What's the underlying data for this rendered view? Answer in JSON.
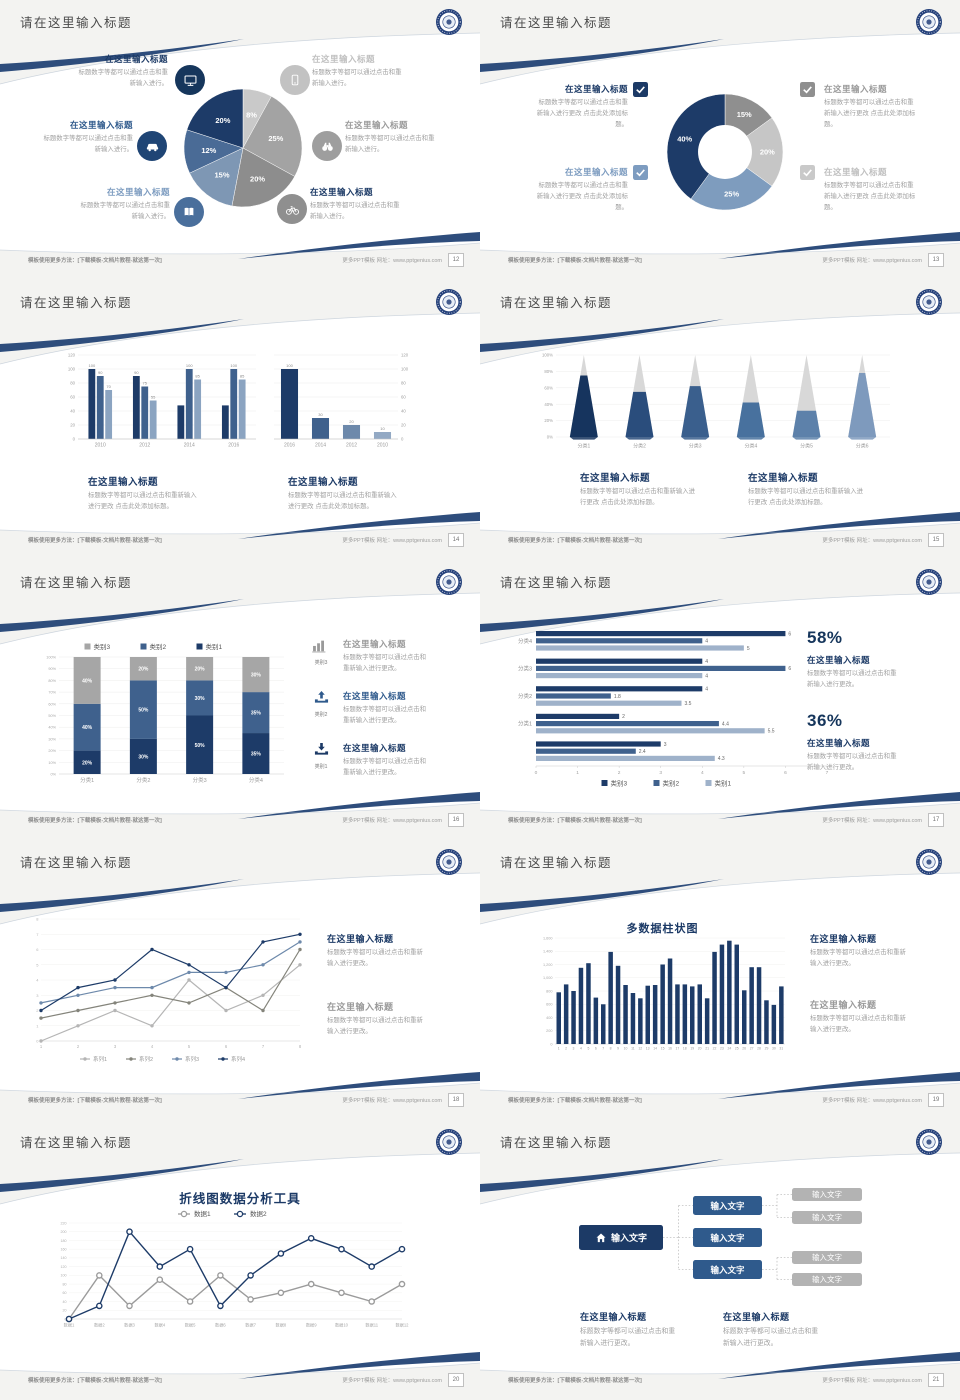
{
  "strings": {
    "slide_title": "请在这里输入标题",
    "item_title": "在这里输入标题",
    "body_short": "标题数字等都可以通过点击和重新输入进行。",
    "body_add": "标题数字等都可以通过点击和重新输入进行更改 点击此处添加标题。",
    "body_change": "标题数字等都可以通过点击和重新输入进行更改。",
    "input_text": "输入文字"
  },
  "footer": {
    "left_label": "模板使用更多方法：[下载模板-文档片教程-就这第一次]",
    "right_label": "更多PPT模板 网址：www.pptgenius.com",
    "pages": [
      "12",
      "13",
      "14",
      "15",
      "16",
      "17",
      "18",
      "19",
      "20",
      "21"
    ]
  },
  "stats": {
    "stat1": "58%",
    "stat2": "36%"
  },
  "colors": {
    "navy": "#1d3b68",
    "mid_blue": "#3f618d",
    "light_blue": "#8ba4c1",
    "steel": "#7e9cbe",
    "gray": "#9a9a9a"
  },
  "chart_data": [
    {
      "type": "pie",
      "values": [
        8,
        25,
        20,
        15,
        12,
        20
      ],
      "labels": [
        "8%",
        "25%",
        "20%",
        "15%",
        "12%",
        "20%"
      ],
      "colors": [
        "#c9c9c9",
        "#a3a3a3",
        "#8d8d8d",
        "#7e97b4",
        "#4a6b96",
        "#1d3b68"
      ]
    },
    {
      "type": "donut",
      "values": [
        15,
        20,
        25,
        40
      ],
      "labels": [
        "15%",
        "20%",
        "25%",
        "40%"
      ],
      "colors": [
        "#8f8f8f",
        "#c6c6c6",
        "#7e9cbe",
        "#1d3b68"
      ]
    },
    {
      "type": "gbar",
      "categories": [
        "2010",
        "2012",
        "2014",
        "2016"
      ],
      "series": [
        {
          "color": "#1d3b68",
          "values": [
            100,
            90,
            48,
            48
          ]
        },
        {
          "color": "#3f618d",
          "values": [
            90,
            75,
            100,
            100
          ]
        },
        {
          "color": "#8ba4c1",
          "values": [
            70,
            55,
            85,
            85
          ]
        }
      ],
      "bar_labels": [
        [
          "100",
          "90",
          "70"
        ],
        [
          "90",
          "75",
          "55"
        ],
        [
          "",
          "100",
          "85"
        ],
        [
          "",
          "100",
          "85"
        ]
      ],
      "ymax": 120,
      "ystep": 20
    },
    {
      "type": "sbar",
      "categories": [
        "2016",
        "2014",
        "2012",
        "2010"
      ],
      "values": [
        100,
        30,
        20,
        10
      ],
      "labels": [
        "100",
        "30",
        "20",
        "10"
      ],
      "colors": [
        "#1d3b68",
        "#3f618d",
        "#6d89ab",
        "#93a9c4"
      ],
      "ymax": 120,
      "ystep": 20
    },
    {
      "type": "pyramid",
      "categories": [
        "分类1",
        "分类2",
        "分类3",
        "分类4",
        "分类5",
        "分类6"
      ],
      "fill_pct": [
        75,
        55,
        62,
        42,
        32,
        78
      ],
      "cone_colors": [
        "#16345e",
        "#2a4d7c",
        "#3a5f8d",
        "#48719e",
        "#5d81aa",
        "#7e9abd"
      ],
      "top_color": "#d8d8d8",
      "yticks": [
        "0%",
        "20%",
        "40%",
        "60%",
        "80%",
        "100%"
      ]
    },
    {
      "type": "stack",
      "categories": [
        "分类1",
        "分类2",
        "分类3",
        "分类4"
      ],
      "series": [
        {
          "name": "类别1",
          "color": "#1d3b68",
          "values": [
            20,
            30,
            50,
            35
          ]
        },
        {
          "name": "类别2",
          "color": "#3f618d",
          "values": [
            40,
            50,
            30,
            35
          ]
        },
        {
          "name": "类别3",
          "color": "#a6a6a6",
          "values": [
            40,
            20,
            20,
            30
          ]
        }
      ],
      "legend_order": [
        "类别3",
        "类别2",
        "类别1"
      ],
      "legend_colors": [
        "#a6a6a6",
        "#3f618d",
        "#1d3b68"
      ]
    },
    {
      "type": "hbar",
      "groups": [
        {
          "label": "分类4",
          "values": [
            6,
            4,
            5
          ]
        },
        {
          "label": "分类3",
          "values": [
            4,
            6,
            4
          ]
        },
        {
          "label": "分类2",
          "values": [
            4,
            1.8,
            3.5
          ]
        },
        {
          "label": "分类1",
          "values": [
            2,
            4.4,
            5.5
          ]
        },
        {
          "label": "",
          "values": [
            3,
            2.4,
            4.3
          ]
        }
      ],
      "series_colors": [
        "#1d3b68",
        "#3f618d",
        "#9fb2ca"
      ],
      "xmax": 7,
      "legend": [
        {
          "name": "类别3",
          "color": "#1d3b68"
        },
        {
          "name": "类别2",
          "color": "#3f618d"
        },
        {
          "name": "类别1",
          "color": "#9fb2ca"
        }
      ]
    },
    {
      "type": "line",
      "x": [
        1,
        2,
        3,
        4,
        5,
        6,
        7,
        8
      ],
      "ymax": 8,
      "series": [
        {
          "name": "系列1",
          "color": "#b5b5b5",
          "values": [
            0,
            1,
            2,
            1,
            4,
            2,
            3,
            5
          ]
        },
        {
          "name": "系列2",
          "color": "#84847b",
          "values": [
            1.5,
            2,
            2.5,
            3,
            2.5,
            3.5,
            2,
            6
          ]
        },
        {
          "name": "系列3",
          "color": "#6d89ab",
          "values": [
            2.5,
            3,
            3.5,
            3.5,
            4.5,
            4.5,
            5,
            6.5
          ]
        },
        {
          "name": "系列4",
          "color": "#1d3b68",
          "values": [
            2,
            3.5,
            4,
            6,
            5,
            3.5,
            6.5,
            7
          ]
        }
      ]
    },
    {
      "type": "cols",
      "title": "多数据柱状图",
      "color": "#1d3b68",
      "ymax": 1600,
      "ystep": 200,
      "values": [
        780,
        900,
        800,
        1150,
        1220,
        700,
        600,
        1390,
        1180,
        890,
        770,
        690,
        880,
        890,
        1200,
        1290,
        900,
        900,
        870,
        900,
        690,
        1390,
        1500,
        1560,
        1500,
        810,
        1160,
        1160,
        660,
        590,
        870
      ]
    },
    {
      "type": "line2",
      "title": "折线图数据分析工具",
      "xlabels": [
        "数据1",
        "数据2",
        "数据3",
        "数据4",
        "数据5",
        "数据6",
        "数据7",
        "数据8",
        "数据9",
        "数据10",
        "数据11",
        "数据12"
      ],
      "ymax": 220,
      "ystep": 20,
      "series": [
        {
          "name": "数据1",
          "color": "#9b9b9b",
          "values": [
            0,
            100,
            30,
            90,
            40,
            100,
            45,
            60,
            80,
            60,
            40,
            80
          ]
        },
        {
          "name": "数据2",
          "color": "#1d3b68",
          "values": [
            0,
            30,
            200,
            120,
            160,
            30,
            100,
            150,
            185,
            160,
            120,
            160
          ]
        }
      ]
    }
  ]
}
